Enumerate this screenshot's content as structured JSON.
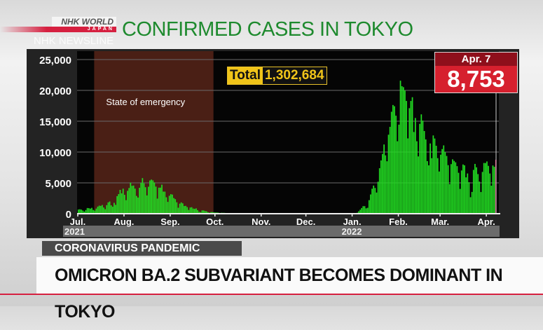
{
  "header": {
    "brand_line1": "NHK WORLD",
    "brand_line2": "JAPAN",
    "program": "NHK NEWSLINE",
    "title": "CONFIRMED CASES IN TOKYO"
  },
  "lower_third": {
    "topic": "CORONAVIRUS PANDEMIC",
    "headline": "OMICRON BA.2 SUBVARIANT BECOMES DOMINANT IN TOKYO"
  },
  "colors": {
    "bar": "#22dd22",
    "emergency": "#4a1f15",
    "title": "#1e8a2e",
    "accent": "#d62040",
    "callout": "#d6202e",
    "latest_bar": "#e0206a"
  },
  "chart_data": {
    "type": "bar",
    "title": "CONFIRMED CASES IN TOKYO",
    "xlabel": "",
    "ylabel": "",
    "ylim": [
      0,
      25000
    ],
    "yticks": [
      0,
      5000,
      10000,
      15000,
      20000,
      25000
    ],
    "ytick_labels": [
      "0",
      "5,000",
      "10,000",
      "15,000",
      "20,000",
      "25,000"
    ],
    "grid": true,
    "start_date": "2021-07-01",
    "end_date": "2022-04-07",
    "xticks": [
      {
        "date": "2021-07-01",
        "label": "Jul."
      },
      {
        "date": "2021-08-01",
        "label": "Aug."
      },
      {
        "date": "2021-09-01",
        "label": "Sep."
      },
      {
        "date": "2021-10-01",
        "label": "Oct."
      },
      {
        "date": "2021-11-01",
        "label": "Nov."
      },
      {
        "date": "2021-12-01",
        "label": "Dec."
      },
      {
        "date": "2022-01-01",
        "label": "Jan."
      },
      {
        "date": "2022-02-01",
        "label": "Feb."
      },
      {
        "date": "2022-03-01",
        "label": "Mar."
      },
      {
        "date": "2022-04-01",
        "label": "Apr."
      }
    ],
    "year_labels": [
      {
        "date": "2021-07-01",
        "label": "2021"
      },
      {
        "date": "2022-01-01",
        "label": "2022"
      }
    ],
    "annotation": {
      "label": "State of emergency",
      "start": "2021-07-12",
      "end": "2021-09-30"
    },
    "total_label": "Total",
    "total_value": "1,302,684",
    "latest": {
      "date_label": "Apr. 7",
      "value": "8,753"
    },
    "values": [
      673,
      714,
      660,
      518,
      342,
      593,
      920,
      896,
      822,
      950,
      614,
      502,
      830,
      1149,
      1308,
      1271,
      1410,
      1008,
      727,
      1387,
      1832,
      1979,
      1359,
      1128,
      1763,
      1429,
      2848,
      3177,
      3865,
      3300,
      4058,
      3058,
      2195,
      3709,
      4166,
      5042,
      4515,
      4566,
      4066,
      2884,
      2612,
      4200,
      4989,
      5773,
      4919,
      4295,
      2962,
      4377,
      5386,
      5534,
      5405,
      5074,
      4392,
      2447,
      4220,
      4228,
      4704,
      3581,
      3581,
      2665,
      1915,
      2909,
      3168,
      3099,
      2539,
      2362,
      1853,
      968,
      1629,
      1834,
      1675,
      1242,
      1273,
      1067,
      611,
      1004,
      1052,
      831,
      782,
      862,
      575,
      302,
      253,
      537,
      531,
      435,
      382,
      235,
      154,
      267,
      267,
      218,
      196,
      200,
      161,
      87,
      149,
      143,
      138,
      82,
      82,
      60,
      49,
      62,
      77,
      62,
      72,
      66,
      40,
      29,
      36,
      41,
      36,
      26,
      32,
      19,
      17,
      29,
      36,
      21,
      23,
      23,
      17,
      9,
      18,
      19,
      22,
      17,
      20,
      15,
      16,
      21,
      24,
      22,
      26,
      25,
      14,
      7,
      23,
      15,
      16,
      18,
      21,
      13,
      9,
      8,
      21,
      16,
      18,
      19,
      16,
      9,
      21,
      15,
      11,
      15,
      14,
      18,
      8,
      15,
      22,
      19,
      18,
      19,
      10,
      13,
      28,
      23,
      16,
      21,
      20,
      16,
      12,
      34,
      21,
      37,
      36,
      37,
      22,
      29,
      46,
      76,
      64,
      78,
      79,
      84,
      103,
      151,
      390,
      641,
      922,
      1224,
      1223,
      871,
      962,
      2198,
      3124,
      4051,
      4561,
      4172,
      3430,
      5185,
      7377,
      8638,
      9699,
      11227,
      9468,
      8503,
      12813,
      14086,
      16538,
      17631,
      17433,
      15895,
      11751,
      14445,
      21576,
      20679,
      20525,
      19978,
      18287,
      12214,
      17113,
      18287,
      18891,
      13249,
      15524,
      11751,
      9291,
      14568,
      16113,
      15097,
      13411,
      12050,
      8527,
      7844,
      11389,
      9004,
      12693,
      12198,
      11018,
      9010,
      6842,
      9573,
      10486,
      11080,
      10002,
      9364,
      7871,
      4801,
      8041,
      8820,
      8562,
      8335,
      7711,
      6632,
      4022,
      7008,
      7984,
      7846,
      5894,
      6526,
      5103,
      2674,
      3533,
      7102,
      8077,
      7528,
      6428,
      5208,
      3514,
      6776,
      8226,
      8217,
      8476,
      7758,
      6520,
      4542,
      7819,
      7604,
      8753
    ]
  }
}
